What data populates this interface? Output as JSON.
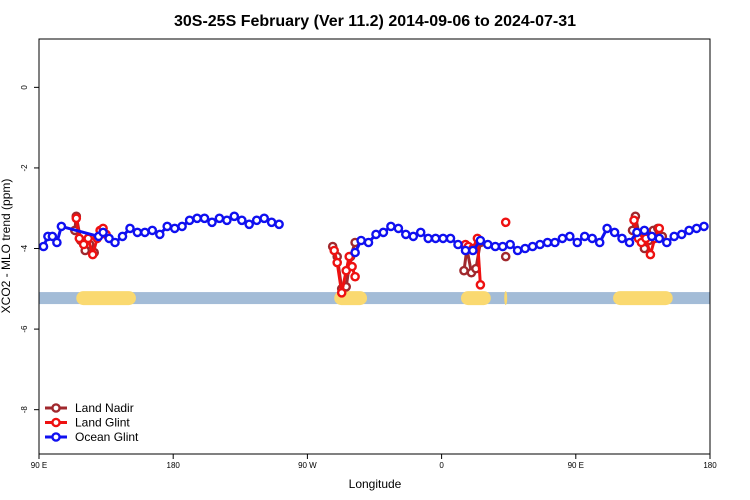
{
  "chart_data": {
    "type": "line",
    "title": "30S-25S February (Ver 11.2)   2014-09-06 to 2024-07-31",
    "xlabel": "Longitude",
    "ylabel": "XCO2 - MLO trend (ppm)",
    "x_ticks": [
      {
        "value": 90,
        "label": "90 E"
      },
      {
        "value": 180,
        "label": "180"
      },
      {
        "value": 270,
        "label": "90 W"
      },
      {
        "value": 360,
        "label": "0"
      },
      {
        "value": 450,
        "label": "90 E"
      },
      {
        "value": 540,
        "label": "180"
      }
    ],
    "y_ticks": [
      {
        "value": 0,
        "label": "0"
      },
      {
        "value": -2,
        "label": "-2"
      },
      {
        "value": -4,
        "label": "-4"
      },
      {
        "value": -6,
        "label": "-6"
      },
      {
        "value": -8,
        "label": "-8"
      }
    ],
    "xlim": [
      90,
      540
    ],
    "ylim": [
      -9.1,
      1.2
    ],
    "grid": false,
    "legend_position": "bottom-left",
    "land_band": {
      "y": -5.23,
      "ocean_color": "#a3bcd7",
      "land_color": "#fad970",
      "land_segments": [
        [
          115,
          155
        ],
        [
          288,
          310
        ],
        [
          373,
          393
        ],
        [
          402,
          404
        ],
        [
          475,
          515
        ]
      ]
    },
    "series": [
      {
        "name": "Land Nadir",
        "color": "#a0282d",
        "segments": [
          [
            [
              114,
              -3.55
            ],
            [
              115,
              -3.2
            ],
            [
              118,
              -3.8
            ],
            [
              121,
              -4.05
            ],
            [
              124,
              -3.9
            ],
            [
              127,
              -4.1
            ]
          ],
          [
            [
              287,
              -3.95
            ],
            [
              290,
              -4.2
            ],
            [
              293,
              -5.0
            ],
            [
              296,
              -4.95
            ],
            [
              299,
              -4.2
            ],
            [
              302,
              -3.85
            ]
          ],
          [
            [
              375,
              -4.55
            ],
            [
              377,
              -4.0
            ],
            [
              380,
              -4.6
            ],
            [
              383,
              -4.5
            ],
            [
              386,
              -3.85
            ]
          ],
          [
            [
              403,
              -4.2
            ]
          ],
          [
            [
              488,
              -3.55
            ],
            [
              490,
              -3.2
            ],
            [
              493,
              -3.75
            ],
            [
              496,
              -4.0
            ],
            [
              499,
              -3.8
            ],
            [
              502,
              -3.55
            ],
            [
              505,
              -3.5
            ],
            [
              508,
              -3.7
            ]
          ]
        ]
      },
      {
        "name": "Land Glint",
        "color": "#ee1111",
        "segments": [
          [
            [
              115,
              -3.25
            ],
            [
              117,
              -3.75
            ],
            [
              120,
              -3.9
            ],
            [
              123,
              -3.75
            ],
            [
              126,
              -4.15
            ],
            [
              129,
              -3.75
            ],
            [
              131,
              -3.55
            ],
            [
              133,
              -3.5
            ],
            [
              135,
              -3.65
            ]
          ],
          [
            [
              288,
              -4.05
            ],
            [
              290,
              -4.35
            ],
            [
              293,
              -5.1
            ],
            [
              296,
              -4.55
            ],
            [
              298,
              -4.2
            ],
            [
              300,
              -4.45
            ],
            [
              302,
              -4.7
            ]
          ],
          [
            [
              376,
              -3.9
            ],
            [
              378,
              -3.95
            ],
            [
              381,
              -4.0
            ],
            [
              384,
              -3.75
            ],
            [
              386,
              -4.9
            ]
          ],
          [
            [
              403,
              -3.35
            ]
          ],
          [
            [
              489,
              -3.3
            ],
            [
              492,
              -3.75
            ],
            [
              494,
              -3.85
            ],
            [
              497,
              -3.75
            ],
            [
              500,
              -4.15
            ],
            [
              503,
              -3.75
            ],
            [
              506,
              -3.5
            ]
          ]
        ]
      },
      {
        "name": "Ocean Glint",
        "color": "#1010f0",
        "segments": [
          [
            [
              93,
              -3.95
            ],
            [
              96,
              -3.7
            ],
            [
              99,
              -3.7
            ],
            [
              102,
              -3.85
            ],
            [
              105,
              -3.45
            ],
            [
              130,
              -3.7
            ],
            [
              133,
              -3.6
            ],
            [
              137,
              -3.75
            ],
            [
              141,
              -3.85
            ],
            [
              146,
              -3.7
            ],
            [
              151,
              -3.5
            ],
            [
              156,
              -3.6
            ],
            [
              161,
              -3.6
            ],
            [
              166,
              -3.55
            ],
            [
              171,
              -3.65
            ],
            [
              176,
              -3.45
            ],
            [
              181,
              -3.5
            ],
            [
              186,
              -3.45
            ],
            [
              191,
              -3.3
            ],
            [
              196,
              -3.25
            ],
            [
              201,
              -3.25
            ],
            [
              206,
              -3.35
            ],
            [
              211,
              -3.25
            ],
            [
              216,
              -3.3
            ],
            [
              221,
              -3.2
            ],
            [
              226,
              -3.3
            ],
            [
              231,
              -3.4
            ],
            [
              236,
              -3.3
            ],
            [
              241,
              -3.25
            ],
            [
              246,
              -3.35
            ],
            [
              251,
              -3.4
            ]
          ],
          [
            [
              302,
              -4.1
            ],
            [
              306,
              -3.8
            ],
            [
              311,
              -3.85
            ],
            [
              316,
              -3.65
            ],
            [
              321,
              -3.6
            ],
            [
              326,
              -3.45
            ],
            [
              331,
              -3.5
            ],
            [
              336,
              -3.65
            ],
            [
              341,
              -3.7
            ],
            [
              346,
              -3.6
            ],
            [
              351,
              -3.75
            ],
            [
              356,
              -3.75
            ],
            [
              361,
              -3.75
            ],
            [
              366,
              -3.75
            ],
            [
              371,
              -3.9
            ],
            [
              376,
              -4.05
            ],
            [
              381,
              -4.05
            ],
            [
              386,
              -3.8
            ],
            [
              391,
              -3.9
            ],
            [
              396,
              -3.95
            ],
            [
              401,
              -3.95
            ],
            [
              406,
              -3.9
            ],
            [
              411,
              -4.05
            ],
            [
              416,
              -4.0
            ],
            [
              421,
              -3.95
            ],
            [
              426,
              -3.9
            ],
            [
              431,
              -3.85
            ],
            [
              436,
              -3.85
            ],
            [
              441,
              -3.75
            ],
            [
              446,
              -3.7
            ],
            [
              451,
              -3.85
            ],
            [
              456,
              -3.7
            ],
            [
              461,
              -3.75
            ],
            [
              466,
              -3.85
            ],
            [
              471,
              -3.5
            ],
            [
              476,
              -3.6
            ],
            [
              481,
              -3.75
            ],
            [
              486,
              -3.85
            ],
            [
              491,
              -3.6
            ],
            [
              496,
              -3.55
            ],
            [
              501,
              -3.7
            ],
            [
              506,
              -3.75
            ],
            [
              511,
              -3.85
            ],
            [
              516,
              -3.7
            ],
            [
              521,
              -3.65
            ],
            [
              526,
              -3.55
            ],
            [
              531,
              -3.5
            ],
            [
              536,
              -3.45
            ]
          ]
        ]
      }
    ]
  }
}
